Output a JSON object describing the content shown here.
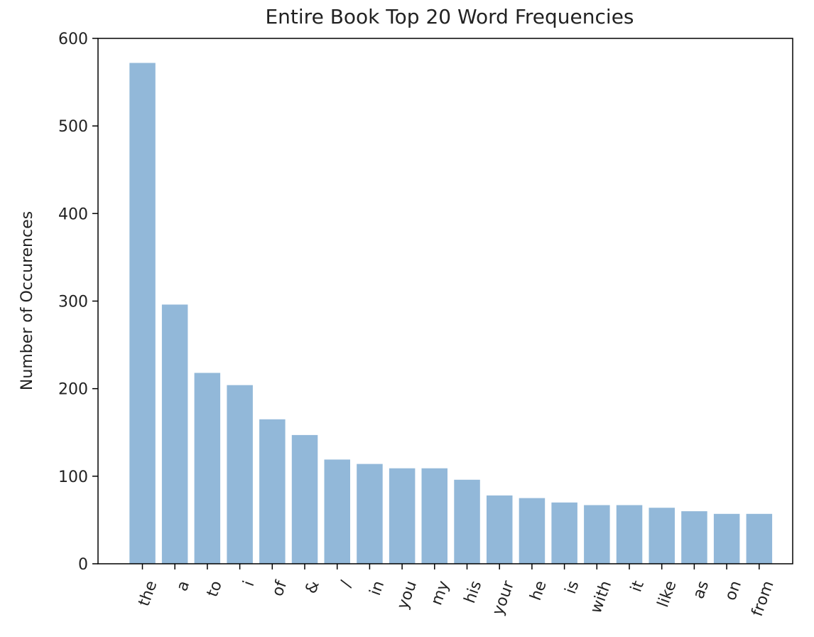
{
  "chart_data": {
    "type": "bar",
    "title": "Entire Book Top 20 Word Frequencies",
    "xlabel": "",
    "ylabel": "Number of Occurences",
    "categories": [
      "the",
      "a",
      "to",
      "i",
      "of",
      "&",
      "/",
      "in",
      "you",
      "my",
      "his",
      "your",
      "he",
      "is",
      "with",
      "it",
      "like",
      "as",
      "on",
      "from"
    ],
    "values": [
      572,
      296,
      218,
      204,
      165,
      147,
      119,
      114,
      109,
      109,
      96,
      78,
      75,
      70,
      67,
      67,
      64,
      60,
      57,
      57
    ],
    "ylim": [
      0,
      600
    ],
    "yticks": [
      0,
      100,
      200,
      300,
      400,
      500,
      600
    ],
    "grid": false,
    "bar_color": "#92b8d9"
  }
}
